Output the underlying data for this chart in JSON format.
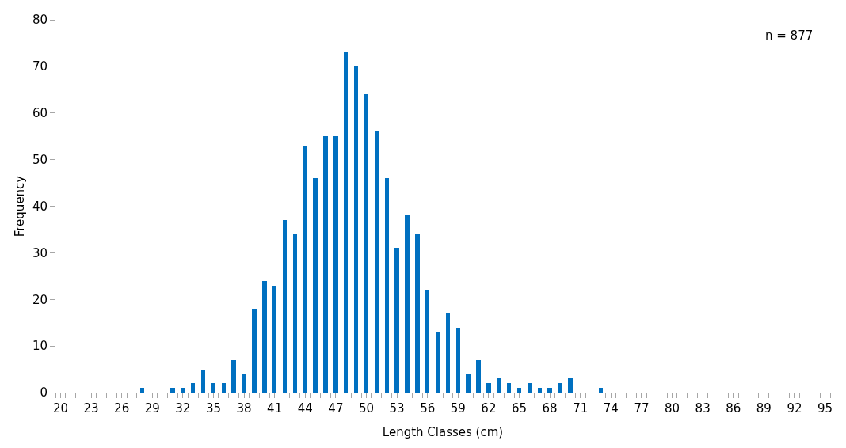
{
  "chart_data": {
    "type": "bar",
    "xlabel": "Length Classes (cm)",
    "ylabel": "Frequency",
    "annotations": [
      "n = 877"
    ],
    "categories": [
      "20",
      null,
      null,
      "23",
      null,
      null,
      "26",
      null,
      null,
      "29",
      null,
      null,
      "32",
      null,
      null,
      "35",
      null,
      null,
      "38",
      null,
      null,
      "41",
      null,
      null,
      "44",
      null,
      null,
      "47",
      null,
      null,
      "50",
      null,
      null,
      "53",
      null,
      null,
      "56",
      null,
      null,
      "59",
      null,
      null,
      "62",
      null,
      null,
      "65",
      null,
      null,
      "68",
      null,
      null,
      "71",
      null,
      null,
      "74",
      null,
      null,
      "77",
      null,
      null,
      "80",
      null,
      null,
      "83",
      null,
      null,
      "86",
      null,
      null,
      "89",
      null,
      null,
      "92",
      null,
      null,
      "95"
    ],
    "values": [
      0,
      0,
      0,
      0,
      0,
      0,
      0,
      0,
      1,
      0,
      0,
      1,
      1,
      2,
      5,
      2,
      2,
      7,
      4,
      18,
      24,
      23,
      37,
      34,
      53,
      46,
      55,
      55,
      73,
      70,
      64,
      56,
      46,
      31,
      38,
      34,
      22,
      13,
      17,
      14,
      4,
      7,
      2,
      3,
      2,
      1,
      2,
      1,
      1,
      2,
      3,
      0,
      0,
      1,
      0,
      0,
      0,
      0,
      0,
      0,
      0,
      0,
      0,
      0,
      0,
      0,
      0,
      0,
      0,
      0,
      0,
      0,
      0,
      0,
      0,
      0
    ],
    "color": "#0070c0",
    "ylim": [
      0,
      80
    ],
    "yticks": [
      0,
      10,
      20,
      30,
      40,
      50,
      60,
      70,
      80
    ],
    "legend": false
  }
}
